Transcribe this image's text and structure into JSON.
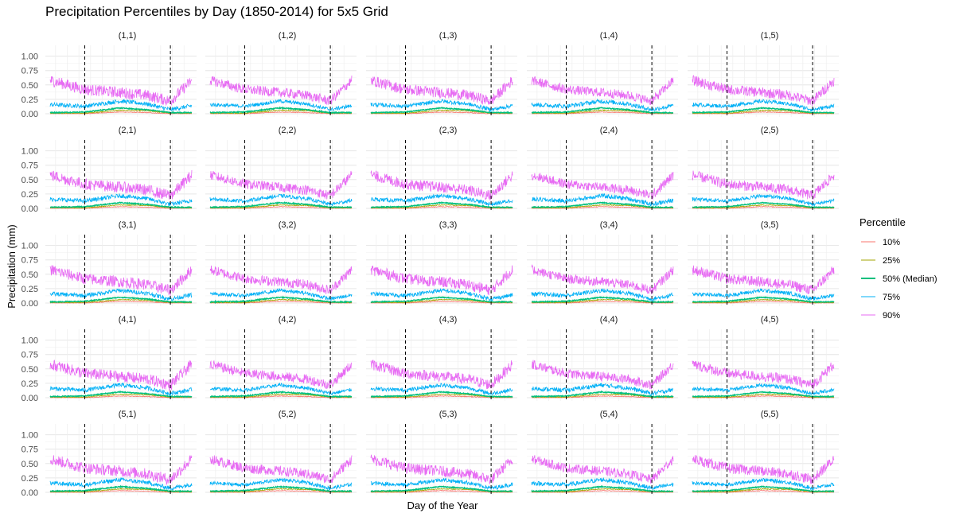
{
  "chart_data": {
    "type": "line",
    "title": "Precipitation Percentiles by Day (1850-2014) for 5x5 Grid",
    "xlabel": "Day of the Year",
    "ylabel": "Precipitation (mm)",
    "x_range": [
      1,
      365
    ],
    "ylim": [
      0,
      1.05
    ],
    "y_ticks": [
      "0.00",
      "0.25",
      "0.50",
      "0.75",
      "1.00"
    ],
    "y_tick_values": [
      0,
      0.25,
      0.5,
      0.75,
      1.0
    ],
    "vlines_day_of_year": [
      90,
      310
    ],
    "grid": true,
    "facet_grid": [
      5,
      5
    ],
    "facets": [
      "(1,1)",
      "(1,2)",
      "(1,3)",
      "(1,4)",
      "(1,5)",
      "(2,1)",
      "(2,2)",
      "(2,3)",
      "(2,4)",
      "(2,5)",
      "(3,1)",
      "(3,2)",
      "(3,3)",
      "(3,4)",
      "(3,5)",
      "(4,1)",
      "(4,2)",
      "(4,3)",
      "(4,4)",
      "(4,5)",
      "(5,1)",
      "(5,2)",
      "(5,3)",
      "(5,4)",
      "(5,5)"
    ],
    "legend_title": "Percentile",
    "legend_position": "right",
    "series": [
      {
        "name": "10%",
        "color": "#F8766D",
        "profile_day": [
          1,
          90,
          180,
          250,
          310,
          365
        ],
        "profile_value": [
          0.0,
          0.0,
          0.03,
          0.02,
          0.0,
          0.0
        ]
      },
      {
        "name": "25%",
        "color": "#A3A500",
        "profile_day": [
          1,
          90,
          180,
          250,
          310,
          365
        ],
        "profile_value": [
          0.01,
          0.01,
          0.06,
          0.05,
          0.01,
          0.01
        ]
      },
      {
        "name": "50% (Median)",
        "color": "#00BF7D",
        "profile_day": [
          1,
          90,
          180,
          250,
          310,
          365
        ],
        "profile_value": [
          0.02,
          0.03,
          0.1,
          0.07,
          0.02,
          0.02
        ]
      },
      {
        "name": "75%",
        "color": "#00B0F6",
        "profile_day": [
          1,
          90,
          180,
          250,
          310,
          365
        ],
        "profile_value": [
          0.16,
          0.13,
          0.22,
          0.17,
          0.07,
          0.14
        ]
      },
      {
        "name": "90%",
        "color": "#E76BF3",
        "profile_day": [
          1,
          90,
          180,
          250,
          310,
          365
        ],
        "profile_value": [
          0.58,
          0.42,
          0.37,
          0.32,
          0.22,
          0.58
        ]
      }
    ]
  }
}
